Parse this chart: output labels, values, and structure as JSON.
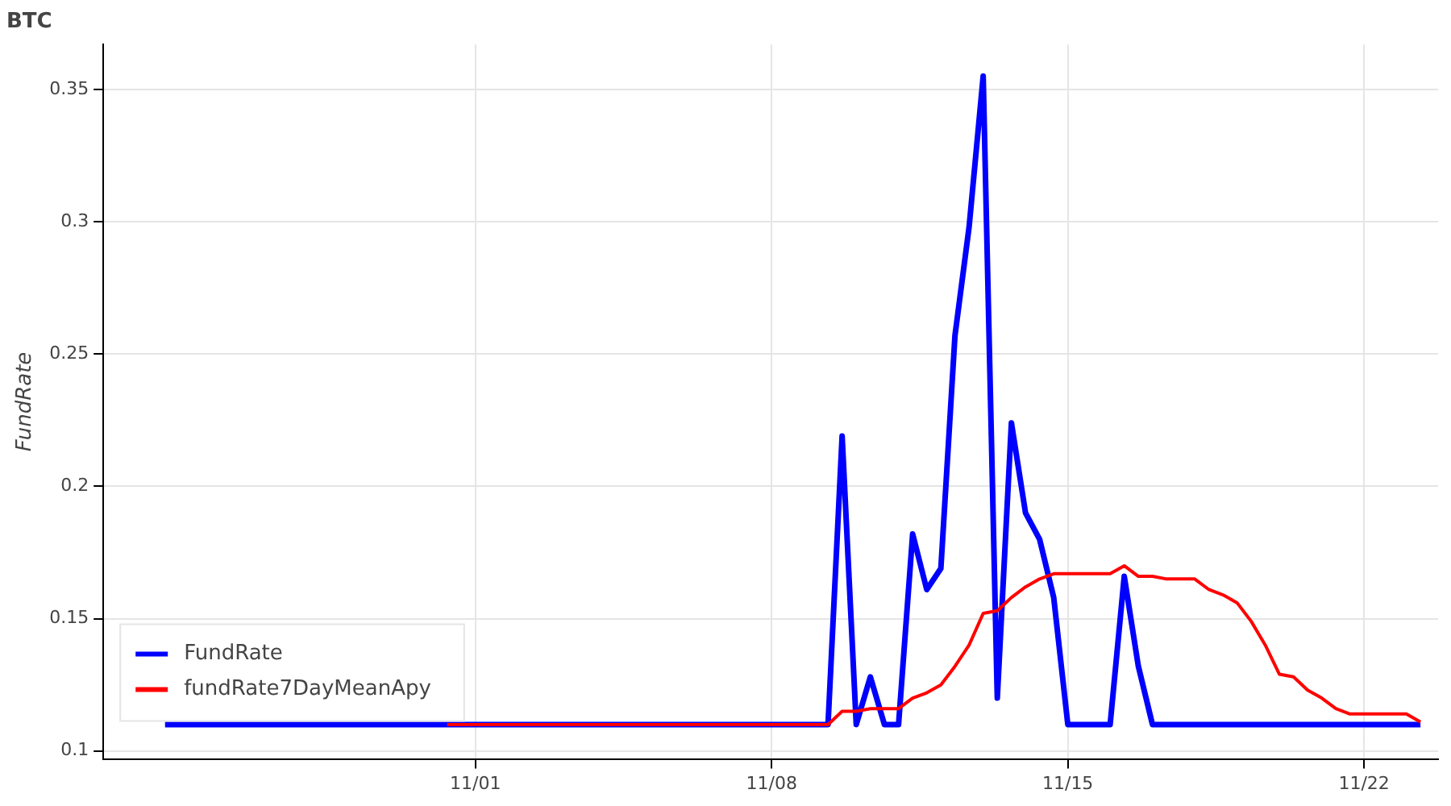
{
  "chart_data": {
    "type": "line",
    "title": "BTC",
    "ylabel": "FundRate",
    "xlim": [
      "--10-23T05:00",
      "--11-23T18:00"
    ],
    "xticks": [
      {
        "value": "--11-01",
        "label": "11/01"
      },
      {
        "value": "--11-08",
        "label": "11/08"
      },
      {
        "value": "--11-15",
        "label": "11/15"
      },
      {
        "value": "--11-22",
        "label": "11/22"
      }
    ],
    "ylim": [
      0.097,
      0.367
    ],
    "yticks": [
      0.1,
      0.15,
      0.2,
      0.25,
      0.3,
      0.35
    ],
    "grid": true,
    "legend": "bottom left",
    "series": [
      {
        "name": "FundRate",
        "color": "#0000ff",
        "x": [
          "--10-24T16:00",
          "--11-09T08:00",
          "--11-09T16:00",
          "--11-10T00:00",
          "--11-10T08:00",
          "--11-10T16:00",
          "--11-11T00:00",
          "--11-11T08:00",
          "--11-11T16:00",
          "--11-12T00:00",
          "--11-12T08:00",
          "--11-12T16:00",
          "--11-13T00:00",
          "--11-13T08:00",
          "--11-13T16:00",
          "--11-14T00:00",
          "--11-14T08:00",
          "--11-14T16:00",
          "--11-15T00:00",
          "--11-16T00:00",
          "--11-16T08:00",
          "--11-16T16:00",
          "--11-17T00:00",
          "--11-23T08:00"
        ],
        "values": [
          0.11,
          0.11,
          0.219,
          0.11,
          0.128,
          0.11,
          0.11,
          0.182,
          0.161,
          0.169,
          0.257,
          0.298,
          0.355,
          0.12,
          0.224,
          0.19,
          0.18,
          0.158,
          0.11,
          0.11,
          0.166,
          0.132,
          0.11,
          0.11
        ]
      },
      {
        "name": "fundRate7DayMeanApy",
        "color": "#ff0000",
        "x": [
          "--10-31T08:00",
          "--11-09T08:00",
          "--11-09T16:00",
          "--11-10T00:00",
          "--11-10T08:00",
          "--11-11T00:00",
          "--11-11T08:00",
          "--11-11T16:00",
          "--11-12T00:00",
          "--11-12T08:00",
          "--11-12T16:00",
          "--11-13T00:00",
          "--11-13T08:00",
          "--11-13T16:00",
          "--11-14T00:00",
          "--11-14T08:00",
          "--11-14T16:00",
          "--11-16T00:00",
          "--11-16T08:00",
          "--11-16T16:00",
          "--11-17T00:00",
          "--11-17T08:00",
          "--11-18T00:00",
          "--11-18T08:00",
          "--11-18T16:00",
          "--11-19T00:00",
          "--11-19T08:00",
          "--11-19T16:00",
          "--11-20T00:00",
          "--11-20T08:00",
          "--11-20T16:00",
          "--11-21T00:00",
          "--11-21T08:00",
          "--11-21T16:00",
          "--11-23T00:00",
          "--11-23T08:00"
        ],
        "values": [
          0.11,
          0.11,
          0.115,
          0.115,
          0.116,
          0.116,
          0.12,
          0.122,
          0.125,
          0.132,
          0.14,
          0.152,
          0.153,
          0.158,
          0.162,
          0.165,
          0.167,
          0.167,
          0.17,
          0.166,
          0.166,
          0.165,
          0.165,
          0.161,
          0.159,
          0.156,
          0.149,
          0.14,
          0.129,
          0.128,
          0.123,
          0.12,
          0.116,
          0.114,
          0.114,
          0.111
        ]
      }
    ]
  }
}
